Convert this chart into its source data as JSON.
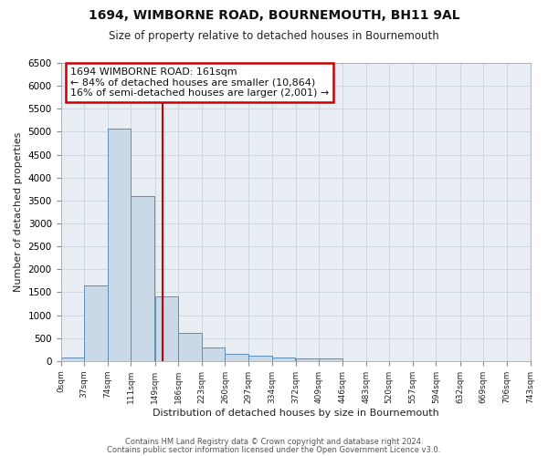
{
  "title1": "1694, WIMBORNE ROAD, BOURNEMOUTH, BH11 9AL",
  "title2": "Size of property relative to detached houses in Bournemouth",
  "xlabel": "Distribution of detached houses by size in Bournemouth",
  "ylabel": "Number of detached properties",
  "bin_edges": [
    0,
    37,
    74,
    111,
    149,
    186,
    223,
    260,
    297,
    334,
    372,
    409,
    446,
    483,
    520,
    557,
    594,
    632,
    669,
    706,
    743
  ],
  "bar_heights": [
    75,
    1650,
    5060,
    3600,
    1400,
    620,
    295,
    150,
    110,
    75,
    50,
    55,
    0,
    0,
    0,
    0,
    0,
    0,
    0,
    0
  ],
  "bar_color": "#c9d9e8",
  "bar_edge_color": "#5b8db8",
  "vline_x": 161,
  "vline_color": "#cc0000",
  "ylim": [
    0,
    6500
  ],
  "xlim": [
    0,
    743
  ],
  "annotation_text": "1694 WIMBORNE ROAD: 161sqm\n← 84% of detached houses are smaller (10,864)\n16% of semi-detached houses are larger (2,001) →",
  "annotation_box_color": "#ffffff",
  "annotation_box_edge_color": "#cc0000",
  "grid_color": "#c8d4dc",
  "footnote1": "Contains HM Land Registry data © Crown copyright and database right 2024.",
  "footnote2": "Contains public sector information licensed under the Open Government Licence v3.0.",
  "tick_labels": [
    "0sqm",
    "37sqm",
    "74sqm",
    "111sqm",
    "149sqm",
    "186sqm",
    "223sqm",
    "260sqm",
    "297sqm",
    "334sqm",
    "372sqm",
    "409sqm",
    "446sqm",
    "483sqm",
    "520sqm",
    "557sqm",
    "594sqm",
    "632sqm",
    "669sqm",
    "706sqm",
    "743sqm"
  ],
  "tick_positions": [
    0,
    37,
    74,
    111,
    149,
    186,
    223,
    260,
    297,
    334,
    372,
    409,
    446,
    483,
    520,
    557,
    594,
    632,
    669,
    706,
    743
  ],
  "bg_color": "#ffffff",
  "plot_bg_color": "#e8eef4"
}
